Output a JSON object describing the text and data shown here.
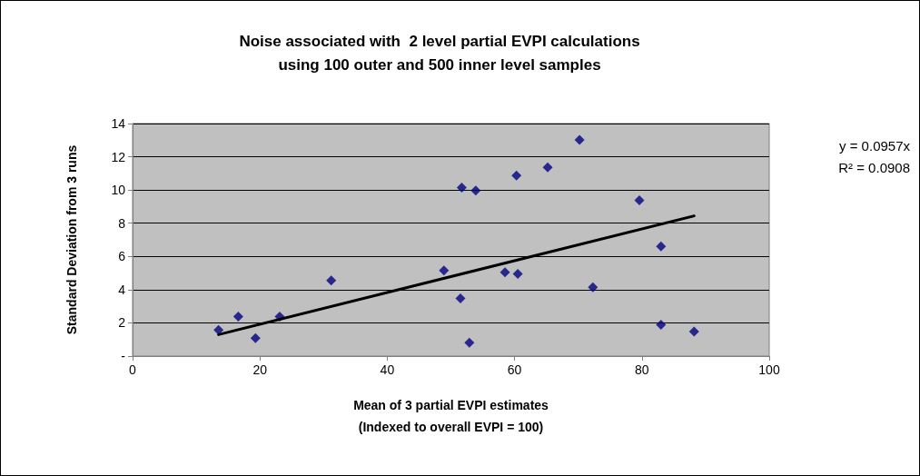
{
  "chart_data": {
    "type": "scatter",
    "title": "Noise associated with  2 level partial EVPI calculations\nusing 100 outer and 500 inner level samples",
    "xlabel": "Mean of 3 partial EVPI estimates\n(Indexed to overall EVPI = 100)",
    "ylabel": "Standard Deviation from 3 runs",
    "series": [
      {
        "color": "#000080",
        "marker": "diamond",
        "x": [
          13.5,
          16.6,
          19.3,
          23.1,
          31.2,
          48.9,
          51.5,
          51.7,
          52.9,
          53.9,
          58.5,
          60.5,
          60.3,
          65.2,
          70.2,
          72.3,
          79.6,
          83.0,
          83.0,
          88.2
        ],
        "values": [
          1.57,
          2.38,
          1.08,
          2.38,
          4.55,
          5.15,
          3.47,
          10.15,
          0.81,
          9.97,
          5.04,
          4.95,
          10.87,
          11.36,
          13.02,
          4.14,
          9.38,
          6.61,
          1.88,
          1.48
        ]
      },
      {
        "type": "line",
        "color": "#000000",
        "marker": "none",
        "line_style": "solid",
        "x": [
          13.5,
          88.2
        ],
        "values": [
          1.29,
          8.44
        ]
      }
    ],
    "xlim": [
      0,
      100
    ],
    "xticks": [
      0,
      20,
      40,
      60,
      80,
      100
    ],
    "ylim": [
      0,
      14
    ],
    "yticks": [
      {
        "value": 0,
        "label": "-"
      },
      2,
      4,
      6,
      8,
      10,
      12,
      14
    ],
    "grid": "y",
    "annotations": [
      "y = 0.0957x",
      "R² = 0.0908"
    ]
  }
}
